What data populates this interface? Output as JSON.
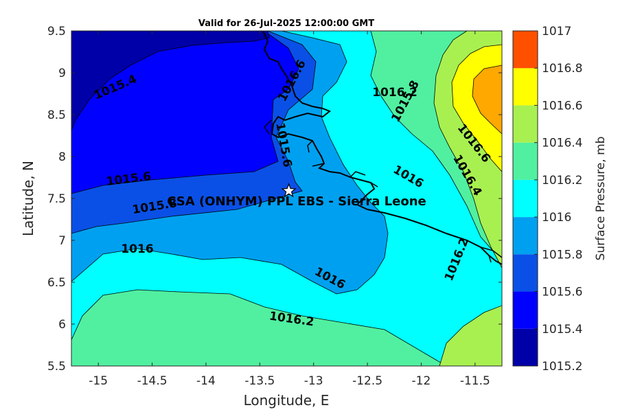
{
  "title": "Valid for 26-Jul-2025 12:00:00 GMT",
  "xlabel": "Longitude, E",
  "ylabel": "Latitude, N",
  "x_ticks": [
    "-15",
    "-14.5",
    "-14",
    "-13.5",
    "-13",
    "-12.5",
    "-12",
    "-11.5"
  ],
  "y_ticks": [
    "9.5",
    "9",
    "8.5",
    "8",
    "7.5",
    "7",
    "6.5",
    "6",
    "5.5"
  ],
  "colorbar": {
    "label": "Surface Pressure, mb",
    "ticks": [
      "1017",
      "1016.8",
      "1016.6",
      "1016.4",
      "1016.2",
      "1016",
      "1015.8",
      "1015.6",
      "1015.4",
      "1015.2"
    ],
    "colors": [
      "#0000a8",
      "#0000ff",
      "#0a50e6",
      "#00a0f0",
      "#00ffff",
      "#50f0a0",
      "#a8f050",
      "#ffff00",
      "#ffa800",
      "#ff5000"
    ]
  },
  "contour_labels": [
    "1015.4",
    "1015.6",
    "1015.8",
    "1016",
    "1016",
    "1016.2",
    "1016.6",
    "1015.6",
    "1015.8",
    "1016",
    "1016.2",
    "1016.6",
    "1016.4",
    "1016.2"
  ],
  "site": {
    "label": "CSA (ONHYM) PPL EBS  - Sierra Leone",
    "lon": -13.23,
    "lat": 7.59
  },
  "chart_data": {
    "type": "heatmap",
    "title": "Valid for 26-Jul-2025 12:00:00 GMT",
    "xlabel": "Longitude, E",
    "ylabel": "Latitude, N",
    "xlim": [
      -15.25,
      -11.25
    ],
    "ylim": [
      5.5,
      9.5
    ],
    "value_range": [
      1015.2,
      1017
    ],
    "levels": [
      1015.2,
      1015.4,
      1015.6,
      1015.8,
      1016,
      1016.2,
      1016.4,
      1016.6,
      1016.8,
      1017
    ],
    "colorbar_label": "Surface Pressure, mb"
  }
}
